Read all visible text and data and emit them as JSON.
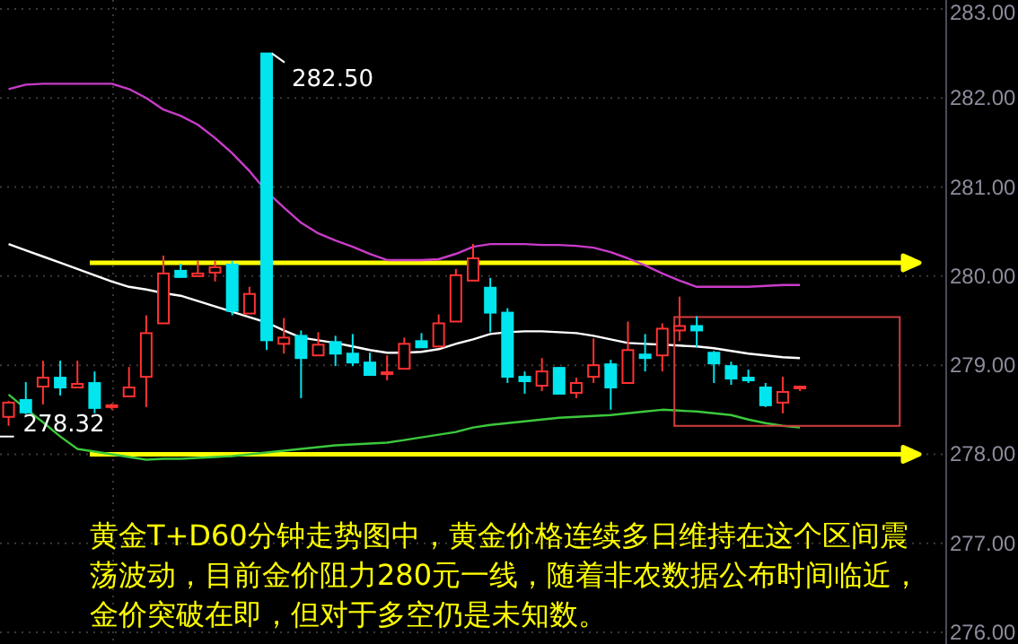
{
  "chart_data": {
    "type": "candlestick",
    "categories": [
      null,
      null,
      null,
      null,
      null,
      null,
      null,
      null,
      null,
      null,
      null,
      null,
      null,
      null,
      null,
      null,
      null,
      null,
      null,
      null,
      null,
      null,
      null,
      null,
      null,
      null,
      null,
      null,
      null,
      null,
      null,
      null,
      null,
      null,
      null,
      null,
      null,
      null,
      null,
      null,
      null,
      null,
      null,
      null,
      null,
      null,
      null,
      null,
      null,
      null,
      null,
      null,
      null,
      null,
      null
    ],
    "ohlc": [
      [
        278.42,
        278.6,
        278.32,
        278.58
      ],
      [
        278.61,
        278.81,
        278.45,
        278.47
      ],
      [
        278.76,
        279.05,
        278.56,
        278.86
      ],
      [
        278.86,
        279.05,
        278.66,
        278.75
      ],
      [
        278.75,
        279.05,
        278.74,
        278.79
      ],
      [
        278.8,
        278.93,
        278.46,
        278.52
      ],
      [
        278.53,
        278.57,
        278.5,
        278.55
      ],
      [
        278.65,
        278.98,
        278.65,
        278.75
      ],
      [
        278.87,
        279.56,
        278.53,
        279.36
      ],
      [
        279.47,
        280.23,
        279.47,
        280.03
      ],
      [
        280.06,
        280.14,
        279.99,
        279.99
      ],
      [
        280.0,
        280.17,
        279.99,
        280.03
      ],
      [
        280.04,
        280.17,
        279.94,
        280.1
      ],
      [
        280.13,
        280.17,
        279.56,
        279.61
      ],
      [
        279.58,
        279.88,
        279.58,
        279.8
      ],
      [
        282.5,
        282.5,
        279.17,
        279.28
      ],
      [
        279.24,
        279.53,
        279.13,
        279.31
      ],
      [
        279.33,
        279.39,
        278.63,
        279.08
      ],
      [
        279.11,
        279.37,
        279.11,
        279.23
      ],
      [
        279.26,
        279.33,
        278.99,
        279.13
      ],
      [
        279.13,
        279.35,
        278.99,
        279.03
      ],
      [
        279.03,
        279.14,
        278.89,
        278.89
      ],
      [
        278.9,
        279.11,
        278.83,
        278.92
      ],
      [
        278.96,
        279.31,
        278.96,
        279.24
      ],
      [
        279.27,
        279.36,
        279.2,
        279.2
      ],
      [
        279.21,
        279.57,
        279.21,
        279.47
      ],
      [
        279.49,
        280.08,
        279.49,
        280.01
      ],
      [
        279.95,
        280.36,
        279.95,
        280.2
      ],
      [
        279.87,
        279.98,
        279.37,
        279.59
      ],
      [
        279.59,
        279.64,
        278.8,
        278.87
      ],
      [
        278.87,
        278.93,
        278.68,
        278.82
      ],
      [
        278.77,
        279.08,
        278.71,
        278.93
      ],
      [
        278.97,
        278.97,
        278.68,
        278.68
      ],
      [
        278.69,
        278.86,
        278.63,
        278.8
      ],
      [
        278.87,
        279.3,
        278.8,
        279.0
      ],
      [
        279.01,
        279.06,
        278.5,
        278.75
      ],
      [
        278.8,
        279.49,
        278.8,
        279.17
      ],
      [
        279.12,
        279.35,
        278.93,
        279.08
      ],
      [
        279.11,
        279.47,
        278.93,
        279.41
      ],
      [
        279.39,
        279.77,
        279.27,
        279.44
      ],
      [
        279.44,
        279.55,
        279.2,
        279.39
      ],
      [
        279.14,
        279.16,
        278.8,
        279.02
      ],
      [
        278.99,
        279.04,
        278.78,
        278.85
      ],
      [
        278.86,
        278.95,
        278.8,
        278.83
      ],
      [
        278.75,
        278.8,
        278.53,
        278.55
      ],
      [
        278.58,
        278.87,
        278.46,
        278.7
      ],
      [
        278.74,
        278.77,
        278.71,
        278.76
      ],
      null,
      null,
      null,
      null,
      null,
      null,
      null,
      null
    ],
    "colors": [
      "#ff3232",
      "#00e5ee",
      "#ff3232",
      "#00e5ee",
      "#ff3232",
      "#00e5ee",
      "#ff3232",
      "#ff3232",
      "#ff3232",
      "#ff3232",
      "#00e5ee",
      "#ff3232",
      "#ff3232",
      "#00e5ee",
      "#ff3232",
      "#00e5ee",
      "#ff3232",
      "#00e5ee",
      "#ff3232",
      "#00e5ee",
      "#00e5ee",
      "#00e5ee",
      "#ff3232",
      "#ff3232",
      "#00e5ee",
      "#ff3232",
      "#ff3232",
      "#ff3232",
      "#00e5ee",
      "#00e5ee",
      "#00e5ee",
      "#ff3232",
      "#00e5ee",
      "#ff3232",
      "#ff3232",
      "#00e5ee",
      "#ff3232",
      "#00e5ee",
      "#ff3232",
      "#ff3232",
      "#00e5ee",
      "#00e5ee",
      "#00e5ee",
      "#00e5ee",
      "#00e5ee",
      "#ff3232",
      "#ff3232",
      null,
      null,
      null,
      null,
      null,
      null,
      null,
      null
    ],
    "series": [
      {
        "type": "line",
        "color": "#c83cc8",
        "values": [
          282.1,
          282.15,
          282.16,
          282.16,
          282.16,
          282.16,
          282.16,
          282.1,
          282.0,
          281.87,
          281.8,
          281.7,
          281.55,
          281.38,
          281.18,
          280.95,
          280.77,
          280.6,
          280.48,
          280.4,
          280.33,
          280.25,
          280.18,
          280.18,
          280.18,
          280.19,
          280.25,
          280.33,
          280.36,
          280.36,
          280.36,
          280.35,
          280.35,
          280.34,
          280.32,
          280.27,
          280.2,
          280.12,
          280.03,
          279.95,
          279.88,
          279.88,
          279.88,
          279.88,
          279.89,
          279.9,
          279.9,
          null,
          null,
          null,
          null,
          null,
          null,
          null,
          null
        ]
      },
      {
        "type": "line",
        "color": "#ffffff",
        "values": [
          280.36,
          280.29,
          280.22,
          280.15,
          280.08,
          280.01,
          279.94,
          279.88,
          279.85,
          279.81,
          279.78,
          279.72,
          279.66,
          279.6,
          279.54,
          279.48,
          279.39,
          279.31,
          279.28,
          279.25,
          279.21,
          279.17,
          279.14,
          279.14,
          279.15,
          279.18,
          279.24,
          279.29,
          279.35,
          279.37,
          279.38,
          279.38,
          279.37,
          279.36,
          279.33,
          279.29,
          279.25,
          279.24,
          279.23,
          279.22,
          279.21,
          279.19,
          279.16,
          279.13,
          279.11,
          279.09,
          279.08,
          null,
          null,
          null,
          null,
          null,
          null,
          null,
          null
        ]
      },
      {
        "type": "line",
        "color": "#3cc83c",
        "values": [
          278.67,
          278.51,
          278.36,
          278.2,
          278.06,
          278.03,
          278.0,
          277.97,
          277.94,
          277.95,
          277.95,
          277.96,
          277.97,
          277.98,
          278.0,
          278.02,
          278.04,
          278.06,
          278.08,
          278.1,
          278.11,
          278.12,
          278.13,
          278.16,
          278.19,
          278.22,
          278.25,
          278.3,
          278.33,
          278.35,
          278.37,
          278.39,
          278.41,
          278.42,
          278.43,
          278.44,
          278.46,
          278.48,
          278.5,
          278.49,
          278.48,
          278.46,
          278.44,
          278.39,
          278.35,
          278.32,
          278.3,
          null,
          null,
          null,
          null,
          null,
          null,
          null,
          null
        ]
      }
    ],
    "ylim": [
      275.87,
      283.1
    ],
    "yticks": [
      {
        "value": 276,
        "label": "276.00"
      },
      {
        "value": 277,
        "label": "277.00"
      },
      {
        "value": 278,
        "label": "278.00"
      },
      {
        "value": 279,
        "label": "279.00"
      },
      {
        "value": 280,
        "label": "280.00"
      },
      {
        "value": 281,
        "label": "281.00"
      },
      {
        "value": 282,
        "label": "282.00"
      },
      {
        "value": 283,
        "label": "283.00"
      }
    ],
    "grid": "y",
    "marker": "none",
    "line_style": "solid",
    "ref_lines": [
      {
        "axis": "y",
        "value": 280.15,
        "color": "#ffff00"
      },
      {
        "axis": "y",
        "value": 278.0,
        "color": "#ffff00"
      }
    ],
    "annotations": [
      "282.50",
      "278.32",
      "黄金T+D60分钟走势图中，黄金价格连续多日维持在这个区间震荡波动，目前金价阻力280元一线，随着非农数据公布时间临近，金价突破在即，但对于多空仍是未知数。"
    ]
  }
}
